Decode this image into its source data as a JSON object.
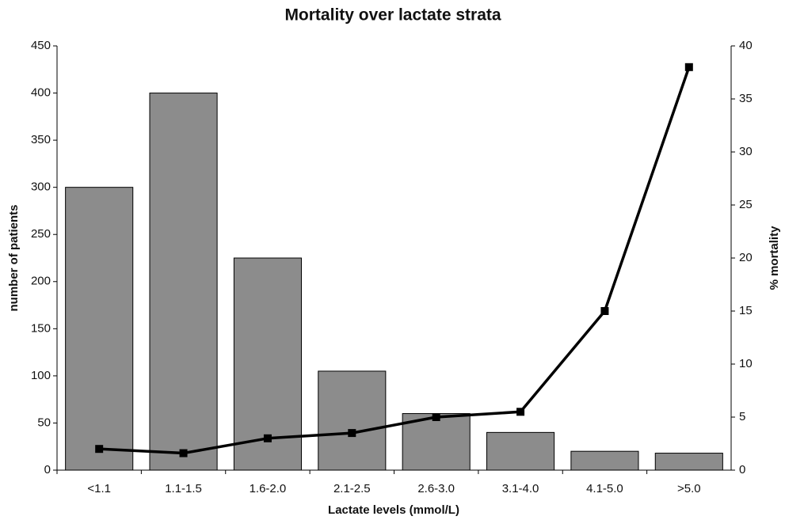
{
  "chart_data": {
    "type": "bar",
    "title": "Mortality over lactate strata",
    "x_label": "Lactate levels (mmol/L)",
    "y_label": "number of patients",
    "y2_label": "% mortality",
    "categories": [
      "<1.1",
      "1.1-1.5",
      "1.6-2.0",
      "2.1-2.5",
      "2.6-3.0",
      "3.1-4.0",
      "4.1-5.0",
      ">5.0"
    ],
    "series": [
      {
        "type": "bar",
        "color": "#8c8c8c",
        "values": [
          300,
          400,
          225,
          105,
          60,
          40,
          20,
          18
        ]
      },
      {
        "type": "line",
        "color": "#000000",
        "axis": "y2",
        "values": [
          2,
          1.6,
          3,
          3.5,
          5,
          5.5,
          15,
          38
        ]
      }
    ],
    "ylim": [
      0,
      450
    ],
    "yticks": [
      0,
      50,
      100,
      150,
      200,
      250,
      300,
      350,
      400,
      450
    ],
    "y2lim": [
      0,
      40
    ],
    "y2ticks": [
      0,
      5,
      10,
      15,
      20,
      25,
      30,
      35,
      40
    ],
    "grid": false
  }
}
